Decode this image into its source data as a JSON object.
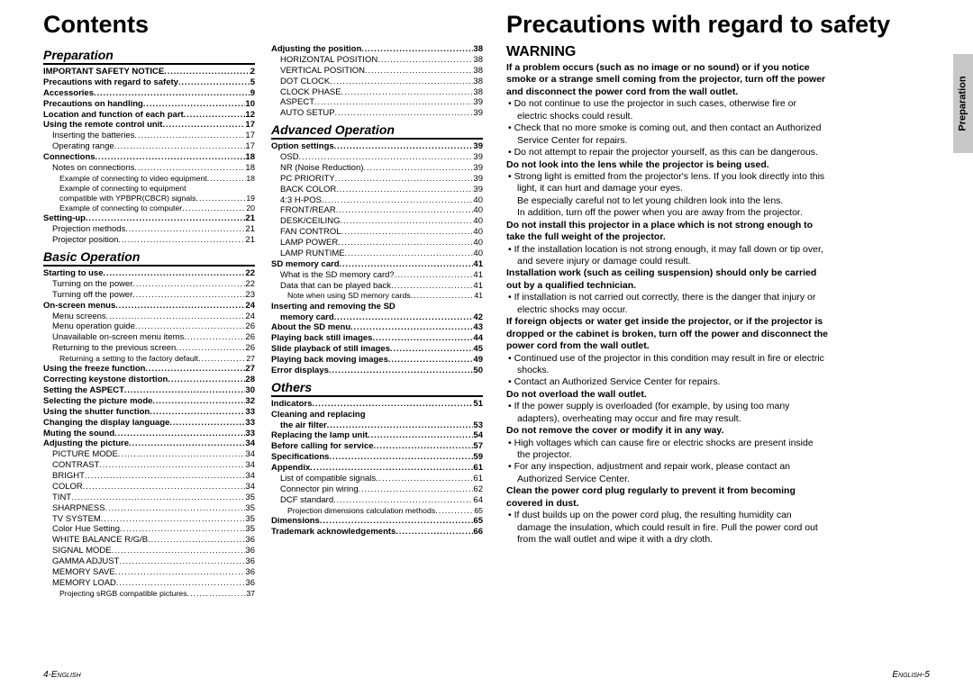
{
  "left_page": {
    "title": "Contents",
    "footer": "4-English",
    "sections": [
      {
        "heading": "Preparation",
        "col": 0,
        "rows": [
          {
            "label": "IMPORTANT SAFETY NOTICE",
            "page": "2",
            "bold": true,
            "indent": 0
          },
          {
            "label": "Precautions with regard to safety",
            "page": "5",
            "bold": true,
            "indent": 0
          },
          {
            "label": "Accessories",
            "page": "9",
            "bold": true,
            "indent": 0
          },
          {
            "label": "Precautions on handling",
            "page": "10",
            "bold": true,
            "indent": 0
          },
          {
            "label": "Location and function of each part",
            "page": "12",
            "bold": true,
            "indent": 0
          },
          {
            "label": "Using the remote control unit",
            "page": "17",
            "bold": true,
            "indent": 0
          },
          {
            "label": "Inserting the batteries",
            "page": "17",
            "bold": false,
            "indent": 1
          },
          {
            "label": "Operating range",
            "page": "17",
            "bold": false,
            "indent": 1
          },
          {
            "label": "Connections",
            "page": "18",
            "bold": true,
            "indent": 0
          },
          {
            "label": "Notes on connections",
            "page": "18",
            "bold": false,
            "indent": 1
          },
          {
            "label": "Example of connecting to video equipment",
            "page": "18",
            "bold": false,
            "indent": 2
          },
          {
            "label": "Example of connecting to equipment",
            "page": "",
            "bold": false,
            "indent": 2,
            "nodots": true
          },
          {
            "label": "compatible with YPBPR(CBCR) signals",
            "page": "19",
            "bold": false,
            "indent": 2
          },
          {
            "label": "Example of connecting to computer",
            "page": "20",
            "bold": false,
            "indent": 2
          },
          {
            "label": "Setting-up",
            "page": "21",
            "bold": true,
            "indent": 0
          },
          {
            "label": "Projection methods",
            "page": "21",
            "bold": false,
            "indent": 1
          },
          {
            "label": "Projector position",
            "page": "21",
            "bold": false,
            "indent": 1
          }
        ]
      },
      {
        "heading": "Basic Operation",
        "col": 0,
        "rows": [
          {
            "label": "Starting to use",
            "page": "22",
            "bold": true,
            "indent": 0
          },
          {
            "label": "Turning on the power",
            "page": "22",
            "bold": false,
            "indent": 1
          },
          {
            "label": "Turning off the power",
            "page": "23",
            "bold": false,
            "indent": 1
          },
          {
            "label": "On-screen menus",
            "page": "24",
            "bold": true,
            "indent": 0
          },
          {
            "label": "Menu screens",
            "page": "24",
            "bold": false,
            "indent": 1
          },
          {
            "label": "Menu operation guide",
            "page": "26",
            "bold": false,
            "indent": 1
          },
          {
            "label": "Unavailable on-screen menu items",
            "page": "26",
            "bold": false,
            "indent": 1
          },
          {
            "label": "Returning to the previous screen",
            "page": "26",
            "bold": false,
            "indent": 1
          },
          {
            "label": "Returning a setting to the factory default",
            "page": "27",
            "bold": false,
            "indent": 2
          },
          {
            "label": "Using the freeze function",
            "page": "27",
            "bold": true,
            "indent": 0
          },
          {
            "label": "Correcting keystone distortion",
            "page": "28",
            "bold": true,
            "indent": 0
          },
          {
            "label": "Setting the ASPECT",
            "page": "30",
            "bold": true,
            "indent": 0
          },
          {
            "label": "Selecting the picture mode",
            "page": "32",
            "bold": true,
            "indent": 0
          },
          {
            "label": "Using the shutter function",
            "page": "33",
            "bold": true,
            "indent": 0
          },
          {
            "label": "Changing the display language",
            "page": "33",
            "bold": true,
            "indent": 0
          },
          {
            "label": "Muting the sound",
            "page": "33",
            "bold": true,
            "indent": 0
          },
          {
            "label": "Adjusting the picture",
            "page": "34",
            "bold": true,
            "indent": 0
          },
          {
            "label": "PICTURE MODE",
            "page": "34",
            "bold": false,
            "indent": 1
          },
          {
            "label": "CONTRAST",
            "page": "34",
            "bold": false,
            "indent": 1
          },
          {
            "label": "BRIGHT",
            "page": "34",
            "bold": false,
            "indent": 1
          },
          {
            "label": "COLOR",
            "page": "34",
            "bold": false,
            "indent": 1
          },
          {
            "label": "TINT",
            "page": "35",
            "bold": false,
            "indent": 1
          },
          {
            "label": "SHARPNESS",
            "page": "35",
            "bold": false,
            "indent": 1
          },
          {
            "label": "TV SYSTEM",
            "page": "35",
            "bold": false,
            "indent": 1
          },
          {
            "label": "Color Hue Setting",
            "page": "35",
            "bold": false,
            "indent": 1
          },
          {
            "label": "WHITE BALANCE R/G/B",
            "page": "36",
            "bold": false,
            "indent": 1
          },
          {
            "label": "SIGNAL MODE",
            "page": "36",
            "bold": false,
            "indent": 1
          },
          {
            "label": "GAMMA ADJUST",
            "page": "36",
            "bold": false,
            "indent": 1
          },
          {
            "label": "MEMORY SAVE",
            "page": "36",
            "bold": false,
            "indent": 1
          },
          {
            "label": "MEMORY LOAD",
            "page": "36",
            "bold": false,
            "indent": 1
          },
          {
            "label": "Projecting sRGB compatible pictures",
            "page": "37",
            "bold": false,
            "indent": 2
          }
        ]
      },
      {
        "heading": null,
        "col": 1,
        "rows": [
          {
            "label": "Adjusting the position",
            "page": "38",
            "bold": true,
            "indent": 0
          },
          {
            "label": "HORIZONTAL POSITION",
            "page": "38",
            "bold": false,
            "indent": 1
          },
          {
            "label": "VERTICAL POSITION",
            "page": "38",
            "bold": false,
            "indent": 1
          },
          {
            "label": "DOT CLOCK",
            "page": "38",
            "bold": false,
            "indent": 1
          },
          {
            "label": "CLOCK PHASE",
            "page": "38",
            "bold": false,
            "indent": 1
          },
          {
            "label": "ASPECT",
            "page": "39",
            "bold": false,
            "indent": 1
          },
          {
            "label": "AUTO SETUP",
            "page": "39",
            "bold": false,
            "indent": 1
          }
        ]
      },
      {
        "heading": "Advanced Operation",
        "col": 1,
        "rows": [
          {
            "label": "Option settings",
            "page": "39",
            "bold": true,
            "indent": 0
          },
          {
            "label": "OSD",
            "page": "39",
            "bold": false,
            "indent": 1
          },
          {
            "label": "NR (Noise Reduction)",
            "page": "39",
            "bold": false,
            "indent": 1
          },
          {
            "label": "PC PRIORITY",
            "page": "39",
            "bold": false,
            "indent": 1
          },
          {
            "label": "BACK COLOR",
            "page": "39",
            "bold": false,
            "indent": 1
          },
          {
            "label": "4:3 H-POS",
            "page": "40",
            "bold": false,
            "indent": 1
          },
          {
            "label": "FRONT/REAR",
            "page": "40",
            "bold": false,
            "indent": 1
          },
          {
            "label": "DESK/CEILING",
            "page": "40",
            "bold": false,
            "indent": 1
          },
          {
            "label": "FAN CONTROL",
            "page": "40",
            "bold": false,
            "indent": 1
          },
          {
            "label": "LAMP POWER",
            "page": "40",
            "bold": false,
            "indent": 1
          },
          {
            "label": "LAMP RUNTIME",
            "page": "40",
            "bold": false,
            "indent": 1
          },
          {
            "label": "SD memory card",
            "page": "41",
            "bold": true,
            "indent": 0
          },
          {
            "label": "What is the SD memory card?",
            "page": "41",
            "bold": false,
            "indent": 1
          },
          {
            "label": "Data that can be played back",
            "page": "41",
            "bold": false,
            "indent": 1
          },
          {
            "label": "Note when using SD memory cards",
            "page": "41",
            "bold": false,
            "indent": 2
          },
          {
            "label": "Inserting and removing the SD",
            "page": "",
            "bold": true,
            "indent": 0,
            "nodots": true
          },
          {
            "label": "memory card",
            "page": "42",
            "bold": true,
            "indent": 1
          },
          {
            "label": "About the SD menu",
            "page": "43",
            "bold": true,
            "indent": 0
          },
          {
            "label": "Playing back still images",
            "page": "44",
            "bold": true,
            "indent": 0
          },
          {
            "label": "Slide playback of still images",
            "page": "45",
            "bold": true,
            "indent": 0
          },
          {
            "label": "Playing back moving images",
            "page": "49",
            "bold": true,
            "indent": 0
          },
          {
            "label": "Error displays",
            "page": "50",
            "bold": true,
            "indent": 0
          }
        ]
      },
      {
        "heading": "Others",
        "col": 1,
        "rows": [
          {
            "label": "Indicators",
            "page": "51",
            "bold": true,
            "indent": 0
          },
          {
            "label": "Cleaning and replacing",
            "page": "",
            "bold": true,
            "indent": 0,
            "nodots": true
          },
          {
            "label": "the air filter",
            "page": "53",
            "bold": true,
            "indent": 1
          },
          {
            "label": "Replacing the lamp unit",
            "page": "54",
            "bold": true,
            "indent": 0
          },
          {
            "label": "Before calling for service",
            "page": "57",
            "bold": true,
            "indent": 0
          },
          {
            "label": "Specifications",
            "page": "59",
            "bold": true,
            "indent": 0
          },
          {
            "label": "Appendix",
            "page": "61",
            "bold": true,
            "indent": 0
          },
          {
            "label": "List of compatible signals",
            "page": "61",
            "bold": false,
            "indent": 1
          },
          {
            "label": "Connector pin wiring",
            "page": "62",
            "bold": false,
            "indent": 1
          },
          {
            "label": "DCF standard",
            "page": "64",
            "bold": false,
            "indent": 1
          },
          {
            "label": "Projection dimensions calculation methods",
            "page": "65",
            "bold": false,
            "indent": 2
          },
          {
            "label": "Dimensions",
            "page": "65",
            "bold": true,
            "indent": 0
          },
          {
            "label": "Trademark acknowledgements",
            "page": "66",
            "bold": true,
            "indent": 0
          }
        ]
      }
    ]
  },
  "right_page": {
    "title": "Precautions with regard to safety",
    "warning_label": "WARNING",
    "side_tab": "Preparation",
    "footer": "English-5",
    "lines": [
      {
        "t": "If a problem occurs (such as no image or no sound) or if you notice",
        "cls": "para-bold"
      },
      {
        "t": "smoke or a strange smell coming from the projector, turn off the power",
        "cls": "para-bold"
      },
      {
        "t": "and disconnect the power cord from the wall outlet.",
        "cls": "para-bold"
      },
      {
        "t": "Do not continue to use the projector in such cases, otherwise fire or",
        "cls": "bullet"
      },
      {
        "t": "electric shocks could result.",
        "cls": "cont"
      },
      {
        "t": "Check that no more smoke is coming out, and then contact an Authorized",
        "cls": "bullet"
      },
      {
        "t": "Service Center for repairs.",
        "cls": "cont"
      },
      {
        "t": "Do not attempt to repair the projector yourself, as this can be dangerous.",
        "cls": "bullet"
      },
      {
        "t": "Do not look into the lens while the projector is being used.",
        "cls": "para-bold"
      },
      {
        "t": "Strong light is emitted from the projector's lens. If you look directly into this",
        "cls": "bullet"
      },
      {
        "t": "light, it can hurt and damage your eyes.",
        "cls": "cont"
      },
      {
        "t": "Be especially careful not to let young children look into the lens.",
        "cls": "cont"
      },
      {
        "t": "In addition, turn off the power when you are away from the projector.",
        "cls": "cont"
      },
      {
        "t": "Do not install this projector in a place which is not strong enough to",
        "cls": "para-bold"
      },
      {
        "t": "take the full weight of the projector.",
        "cls": "para-bold"
      },
      {
        "t": "If the installation location is not strong enough, it may fall down or tip over,",
        "cls": "bullet"
      },
      {
        "t": "and severe injury or damage could result.",
        "cls": "cont"
      },
      {
        "t": "Installation work (such as ceiling suspension) should only be carried",
        "cls": "para-bold"
      },
      {
        "t": "out by a qualified technician.",
        "cls": "para-bold"
      },
      {
        "t": "If installation is not carried out correctly, there is the danger that injury or",
        "cls": "bullet"
      },
      {
        "t": "electric shocks may occur.",
        "cls": "cont"
      },
      {
        "t": "If foreign objects or water get inside the projector, or if the projector is",
        "cls": "para-bold"
      },
      {
        "t": "dropped or the cabinet is broken, turn off the power and disconnect the",
        "cls": "para-bold"
      },
      {
        "t": "power cord from the wall outlet.",
        "cls": "para-bold"
      },
      {
        "t": "Continued use of the projector in this condition may result in fire or electric",
        "cls": "bullet"
      },
      {
        "t": "shocks.",
        "cls": "cont"
      },
      {
        "t": "Contact an Authorized Service Center for repairs.",
        "cls": "bullet"
      },
      {
        "t": "Do not overload the wall outlet.",
        "cls": "para-bold"
      },
      {
        "t": "If the power supply is overloaded (for example, by using too many",
        "cls": "bullet"
      },
      {
        "t": "adapters), overheating may occur and fire may result.",
        "cls": "cont"
      },
      {
        "t": "Do not remove the cover or modify it in any way.",
        "cls": "para-bold"
      },
      {
        "t": "High voltages which can cause fire or electric shocks are present inside",
        "cls": "bullet"
      },
      {
        "t": "the projector.",
        "cls": "cont"
      },
      {
        "t": "For any inspection, adjustment and repair work, please contact an",
        "cls": "bullet"
      },
      {
        "t": "Authorized Service Center.",
        "cls": "cont"
      },
      {
        "t": "Clean the power cord plug regularly to prevent it from becoming",
        "cls": "para-bold"
      },
      {
        "t": "covered in dust.",
        "cls": "para-bold"
      },
      {
        "t": "If dust builds up on the power cord plug, the resulting humidity can",
        "cls": "bullet"
      },
      {
        "t": "damage the insulation, which could result in fire. Pull the power cord out",
        "cls": "cont"
      },
      {
        "t": "from the wall outlet and wipe it with a dry cloth.",
        "cls": "cont"
      }
    ]
  },
  "colors": {
    "bg": "#ffffff",
    "text": "#000000",
    "tab_bg": "#c8c8c8"
  }
}
